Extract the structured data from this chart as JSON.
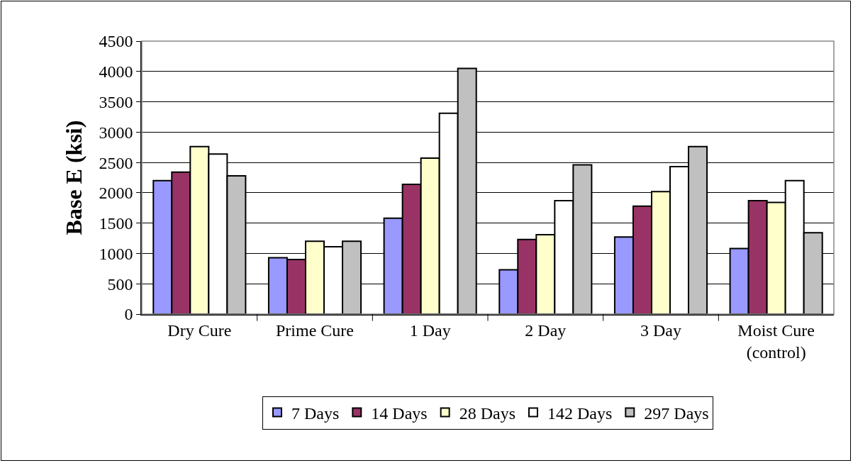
{
  "chart_data": {
    "type": "bar",
    "ylabel": "Base E (ksi)",
    "categories": [
      "Dry Cure",
      "Prime Cure",
      "1 Day",
      "2 Day",
      "3 Day",
      "Moist Cure\n(control)"
    ],
    "series": [
      {
        "name": "7 Days",
        "color": "#9999ff",
        "values": [
          2200,
          930,
          1580,
          730,
          1270,
          1080
        ]
      },
      {
        "name": "14 Days",
        "color": "#993366",
        "values": [
          2340,
          900,
          2140,
          1230,
          1780,
          1870
        ]
      },
      {
        "name": "28 Days",
        "color": "#ffffcc",
        "values": [
          2760,
          1200,
          2570,
          1310,
          2020,
          1840
        ]
      },
      {
        "name": "142 Days",
        "color": "#ffffff",
        "values": [
          2640,
          1110,
          3310,
          1870,
          2430,
          2200
        ]
      },
      {
        "name": "297 Days",
        "color": "#c0c0c0",
        "values": [
          2280,
          1200,
          4050,
          2460,
          2760,
          1340
        ]
      }
    ],
    "ylim": [
      0,
      4500
    ],
    "yticks": [
      0,
      500,
      1000,
      1500,
      2000,
      2500,
      3000,
      3500,
      4000,
      4500
    ],
    "grid": "y",
    "legend": "bottom"
  }
}
